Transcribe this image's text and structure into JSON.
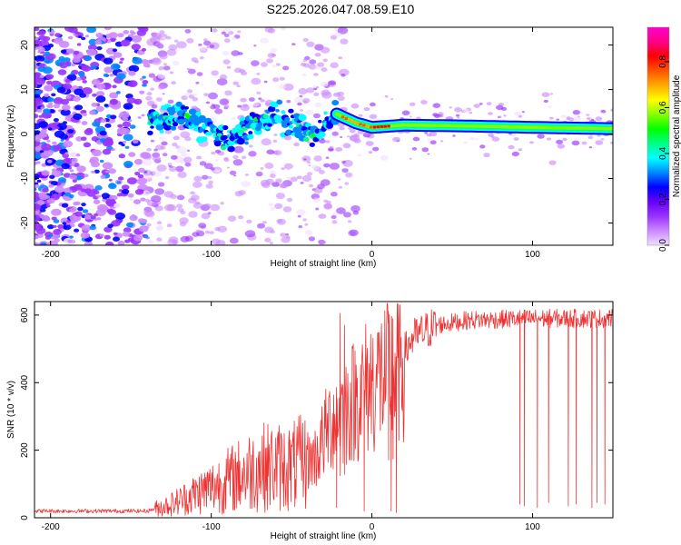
{
  "title": "S225.2026.047.08.59.E10",
  "chart_data": [
    {
      "type": "heatmap",
      "xlabel": "Height of straight line (km)",
      "ylabel": "Frequency (Hz)",
      "xlim": [
        -210,
        150
      ],
      "ylim": [
        -25,
        24
      ],
      "xticks": [
        -200,
        -100,
        0,
        100
      ],
      "yticks": [
        -20,
        -10,
        0,
        10,
        20
      ],
      "tone_track": [
        {
          "x": -135,
          "y": 3.0
        },
        {
          "x": -120,
          "y": 4.5
        },
        {
          "x": -105,
          "y": 1.5
        },
        {
          "x": -90,
          "y": -1.0
        },
        {
          "x": -75,
          "y": 2.0
        },
        {
          "x": -60,
          "y": 4.0
        },
        {
          "x": -45,
          "y": 1.5
        },
        {
          "x": -35,
          "y": -0.5
        },
        {
          "x": -22,
          "y": 4.5
        },
        {
          "x": -10,
          "y": 2.5
        },
        {
          "x": 0,
          "y": 1.5
        },
        {
          "x": 20,
          "y": 2.0
        },
        {
          "x": 60,
          "y": 1.8
        },
        {
          "x": 100,
          "y": 1.5
        },
        {
          "x": 150,
          "y": 1.2
        }
      ],
      "colorbar": {
        "label": "Normalized spectral amplitude",
        "range": [
          0.0,
          0.95
        ],
        "ticks": [
          "0.0",
          "0.2",
          "0.4",
          "0.6",
          "0.8"
        ],
        "colors": [
          "#f0e0ff",
          "#cc88ff",
          "#9933ff",
          "#6600ff",
          "#0000ff",
          "#0088ff",
          "#00ffff",
          "#00ff88",
          "#00ff00",
          "#88ff00",
          "#ffff00",
          "#ffaa00",
          "#ff5500",
          "#ff0000",
          "#ff0088",
          "#ff00cc"
        ]
      }
    },
    {
      "type": "line",
      "xlabel": "Height of straight line (km)",
      "ylabel": "SNR (10 * v/v)",
      "xlim": [
        -210,
        150
      ],
      "ylim": [
        0,
        640
      ],
      "xticks": [
        -200,
        -100,
        0,
        100
      ],
      "yticks": [
        0,
        200,
        400,
        600
      ],
      "color": "#ee3333",
      "profile": [
        {
          "x": -210,
          "y": 20
        },
        {
          "x": -140,
          "y": 20
        },
        {
          "x": -125,
          "y": 40
        },
        {
          "x": -110,
          "y": 70
        },
        {
          "x": -90,
          "y": 110
        },
        {
          "x": -70,
          "y": 150
        },
        {
          "x": -50,
          "y": 150
        },
        {
          "x": -35,
          "y": 180
        },
        {
          "x": -25,
          "y": 290
        },
        {
          "x": -15,
          "y": 330
        },
        {
          "x": 0,
          "y": 400
        },
        {
          "x": 15,
          "y": 440
        },
        {
          "x": 25,
          "y": 530
        },
        {
          "x": 40,
          "y": 570
        },
        {
          "x": 60,
          "y": 585
        },
        {
          "x": 100,
          "y": 590
        },
        {
          "x": 150,
          "y": 590
        }
      ],
      "spikes_up": [
        {
          "x": -20,
          "y": 605
        },
        {
          "x": -17,
          "y": 570
        },
        {
          "x": 10,
          "y": 610
        },
        {
          "x": 13,
          "y": 590
        }
      ],
      "dropouts": [
        {
          "x": -22,
          "y": 30
        },
        {
          "x": -5,
          "y": 20
        },
        {
          "x": 12,
          "y": 20
        },
        {
          "x": 15,
          "y": 15
        },
        {
          "x": 92,
          "y": 40
        },
        {
          "x": 95,
          "y": 35
        },
        {
          "x": 103,
          "y": 30
        },
        {
          "x": 110,
          "y": 45
        },
        {
          "x": 122,
          "y": 35
        },
        {
          "x": 127,
          "y": 40
        },
        {
          "x": 137,
          "y": 30
        },
        {
          "x": 140,
          "y": 45
        },
        {
          "x": 145,
          "y": 40
        }
      ]
    }
  ]
}
